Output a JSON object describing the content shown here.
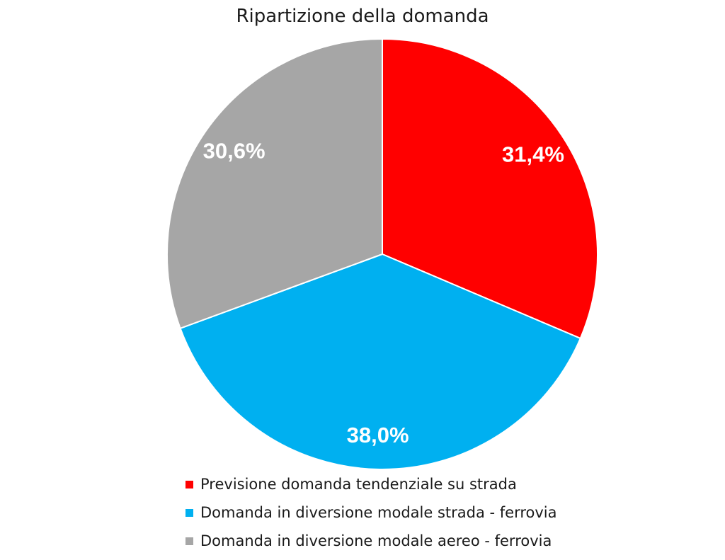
{
  "chart_data": {
    "type": "pie",
    "title": "Ripartizione della domanda",
    "slices": [
      {
        "label": "Previsione domanda tendenziale su strada",
        "value": 31.4,
        "display": "31,4%",
        "color": "#ff0000"
      },
      {
        "label": "Domanda in diversione modale strada - ferrovia",
        "value": 38.0,
        "display": "38,0%",
        "color": "#00b0f0"
      },
      {
        "label": "Domanda in diversione modale aereo - ferrovia",
        "value": 30.6,
        "display": "30,6%",
        "color": "#a6a6a6"
      }
    ],
    "start": "12 o'clock",
    "direction": "clockwise",
    "legend_position": "bottom"
  }
}
